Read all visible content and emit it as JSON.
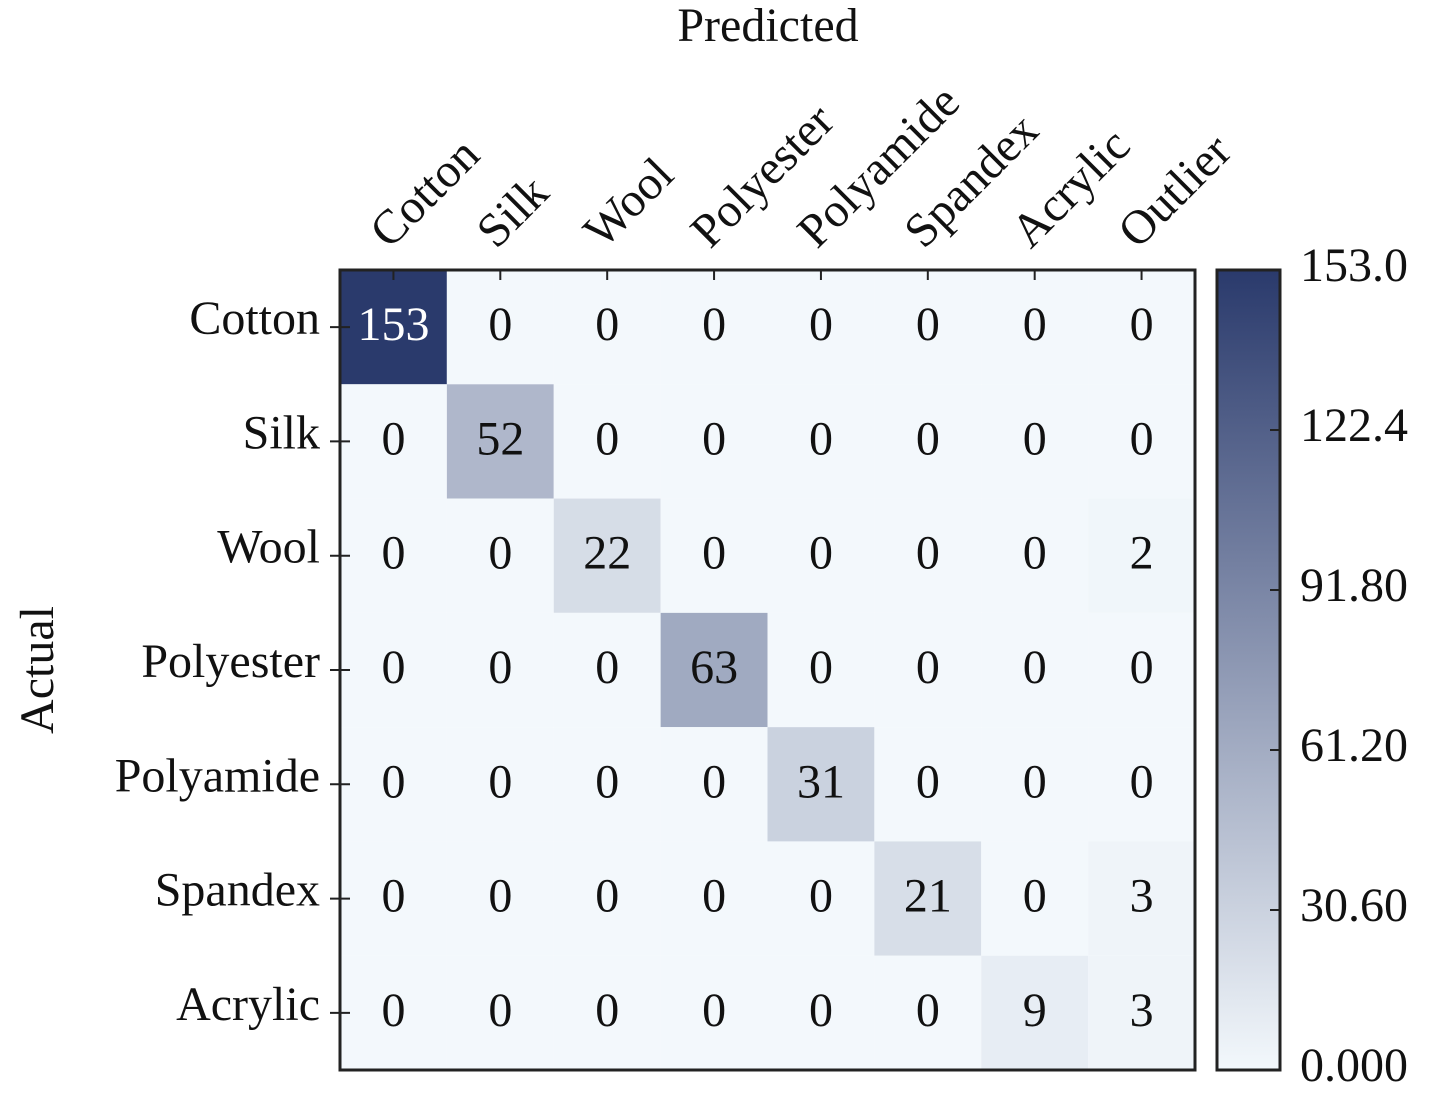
{
  "chart_data": {
    "type": "heatmap",
    "title": "Predicted",
    "y_label": "Actual",
    "x_categories": [
      "Cotton",
      "Silk",
      "Wool",
      "Polyester",
      "Polyamide",
      "Spandex",
      "Acrylic",
      "Outlier"
    ],
    "y_categories": [
      "Cotton",
      "Silk",
      "Wool",
      "Polyester",
      "Polyamide",
      "Spandex",
      "Acrylic"
    ],
    "values": [
      [
        153,
        0,
        0,
        0,
        0,
        0,
        0,
        0
      ],
      [
        0,
        52,
        0,
        0,
        0,
        0,
        0,
        0
      ],
      [
        0,
        0,
        22,
        0,
        0,
        0,
        0,
        2
      ],
      [
        0,
        0,
        0,
        63,
        0,
        0,
        0,
        0
      ],
      [
        0,
        0,
        0,
        0,
        31,
        0,
        0,
        0
      ],
      [
        0,
        0,
        0,
        0,
        0,
        21,
        0,
        3
      ],
      [
        0,
        0,
        0,
        0,
        0,
        0,
        9,
        3
      ]
    ],
    "colormap": [
      "#f3f8fc",
      "#2a3a6c"
    ],
    "zlim": [
      0,
      153
    ],
    "zticks": [
      {
        "value": 0,
        "label": "0.000"
      },
      {
        "value": 30.6,
        "label": "30.60"
      },
      {
        "value": 61.2,
        "label": "61.20"
      },
      {
        "value": 91.8,
        "label": "91.80"
      },
      122.4,
      {
        "value": 153,
        "label": "153.0"
      }
    ]
  }
}
